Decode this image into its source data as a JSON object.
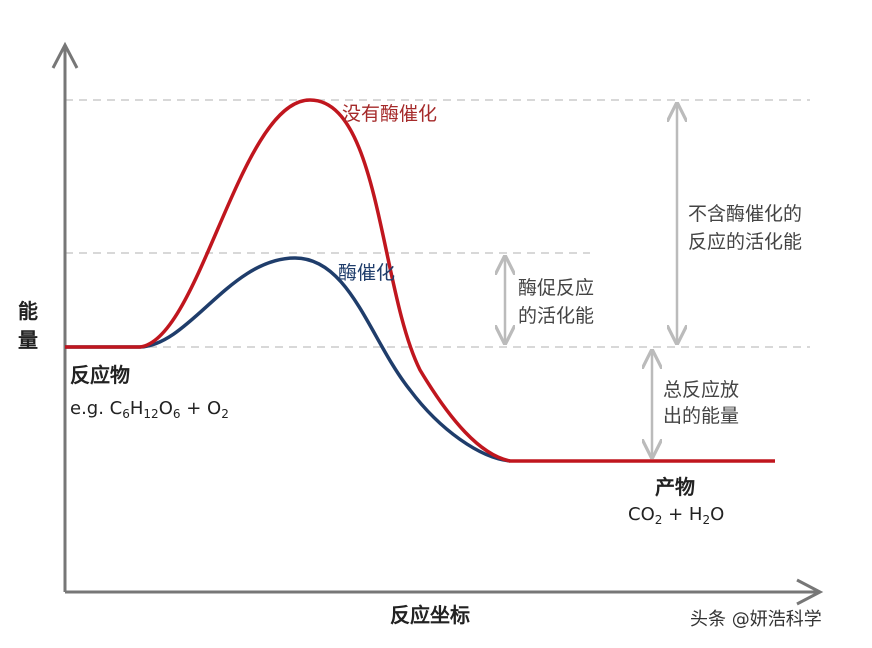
{
  "y_axis_label": [
    "能",
    "量"
  ],
  "x_axis_label": "反应坐标",
  "curves": {
    "uncatalyzed": "没有酶催化",
    "catalyzed": "酶催化"
  },
  "annotations": {
    "uncatalyzed_activation": [
      "不含酶催化的",
      "反应的活化能"
    ],
    "catalyzed_activation": [
      "酶促反应",
      "的活化能"
    ],
    "energy_released": [
      "总反应放",
      "出的能量"
    ]
  },
  "reactants": {
    "label": "反应物",
    "formula": [
      [
        "e.g. C",
        "6"
      ],
      [
        "H",
        "12"
      ],
      [
        "O",
        "6"
      ],
      [
        " + O",
        "2"
      ]
    ]
  },
  "products": {
    "label": "产物",
    "formula": [
      [
        "CO",
        "2"
      ],
      [
        " + H",
        "2"
      ],
      [
        "O",
        ""
      ]
    ]
  },
  "watermark": "头条 @妍浩科学"
}
